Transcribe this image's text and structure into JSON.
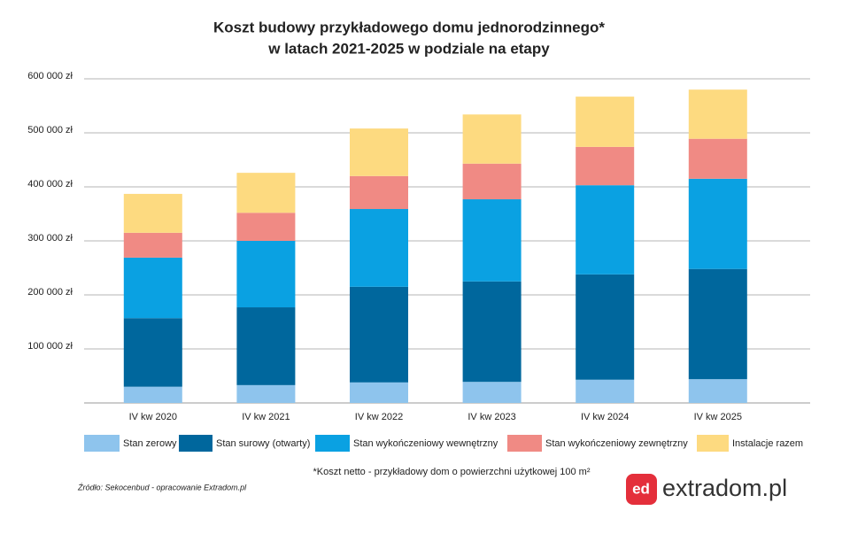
{
  "chart_data": {
    "type": "stacked_bar",
    "title": [
      "Koszt budowy przykładowego domu jednorodzinnego*",
      "w latach 2021-2025 w podziale na etapy"
    ],
    "categories": [
      "IV kw 2020",
      "IV kw 2021",
      "IV kw 2022",
      "IV kw 2023",
      "IV kw 2024",
      "IV kw 2025"
    ],
    "series": [
      {
        "name": "Stan zerowy",
        "color": "#8ec4ed",
        "values": [
          30000,
          33000,
          38000,
          39000,
          43000,
          44000
        ]
      },
      {
        "name": "Stan surowy (otwarty)",
        "color": "#00679d",
        "values": [
          127000,
          144000,
          177000,
          186000,
          195000,
          204000
        ]
      },
      {
        "name": "Stan wykończeniowy wewnętrzny",
        "color": "#0aa1e2",
        "values": [
          112000,
          123000,
          144000,
          152000,
          165000,
          167000
        ]
      },
      {
        "name": "Stan wykończeniowy zewnętrzny",
        "color": "#f08a84",
        "values": [
          46000,
          52000,
          61000,
          66000,
          71000,
          74000
        ]
      },
      {
        "name": "Instalacje razem",
        "color": "#fdda80",
        "values": [
          72000,
          74000,
          88000,
          91000,
          93000,
          91000
        ]
      }
    ],
    "ylim": [
      0,
      600000
    ],
    "yticks": [
      {
        "value": 100000,
        "label": "100 000 zł"
      },
      {
        "value": 200000,
        "label": "200 000 zł"
      },
      {
        "value": 300000,
        "label": "300 000 zł"
      },
      {
        "value": 400000,
        "label": "400 000 zł"
      },
      {
        "value": 500000,
        "label": "500 000 zł"
      },
      {
        "value": 600000,
        "label": "600 000 zł"
      }
    ],
    "grid": true,
    "footnote": "*Koszt netto - przykładowy dom o powierzchni użytkowej 100 m²",
    "source": "Źródło: Sekocenbud - opracowanie Extradom.pl",
    "logo_icon": "ed",
    "logo_text": "extradom.pl"
  }
}
